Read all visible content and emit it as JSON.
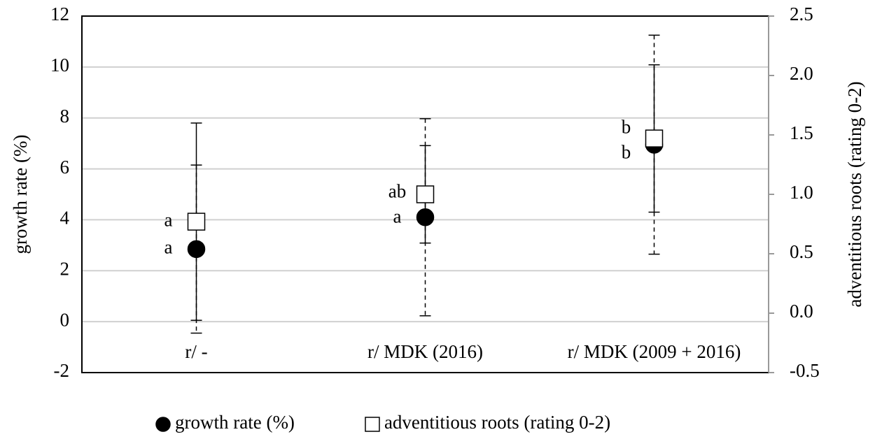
{
  "chart_data": {
    "type": "scatter",
    "categories": [
      "r/ -",
      "r/ MDK (2016)",
      "r/ MDK (2009 + 2016)"
    ],
    "ylabel": "growth rate (%)",
    "y2label": "adventitious roots (rating 0-2)",
    "ylim": [
      -2,
      12
    ],
    "yticks": [
      12,
      10,
      8,
      6,
      4,
      2,
      0,
      -2
    ],
    "y2lim": [
      -0.5,
      2.5
    ],
    "y2ticks": [
      2.5,
      {
        "value": 2.0,
        "label": "2.0"
      },
      1.5,
      {
        "value": 1.0,
        "label": "1.0"
      },
      0.5,
      {
        "value": 0.0,
        "label": "0.0"
      },
      -0.5
    ],
    "grid": true,
    "legend": "bottom",
    "series": [
      {
        "name": "growth rate (%)",
        "color": "#000000",
        "marker": "circle",
        "error_style": "dashed",
        "values": [
          2.85,
          4.1,
          6.95
        ],
        "errors": [
          3.3,
          3.87,
          4.3
        ],
        "labels": [
          "a",
          "a",
          "b"
        ]
      },
      {
        "name": "adventitious roots (rating 0-2)",
        "color": "#ffffff",
        "marker": "square",
        "axis": "y2",
        "error_style": "solid",
        "values": [
          0.77,
          1.0,
          1.47
        ],
        "errors": [
          0.83,
          0.41,
          0.62
        ],
        "labels": [
          "a",
          "ab",
          "b"
        ]
      }
    ]
  }
}
